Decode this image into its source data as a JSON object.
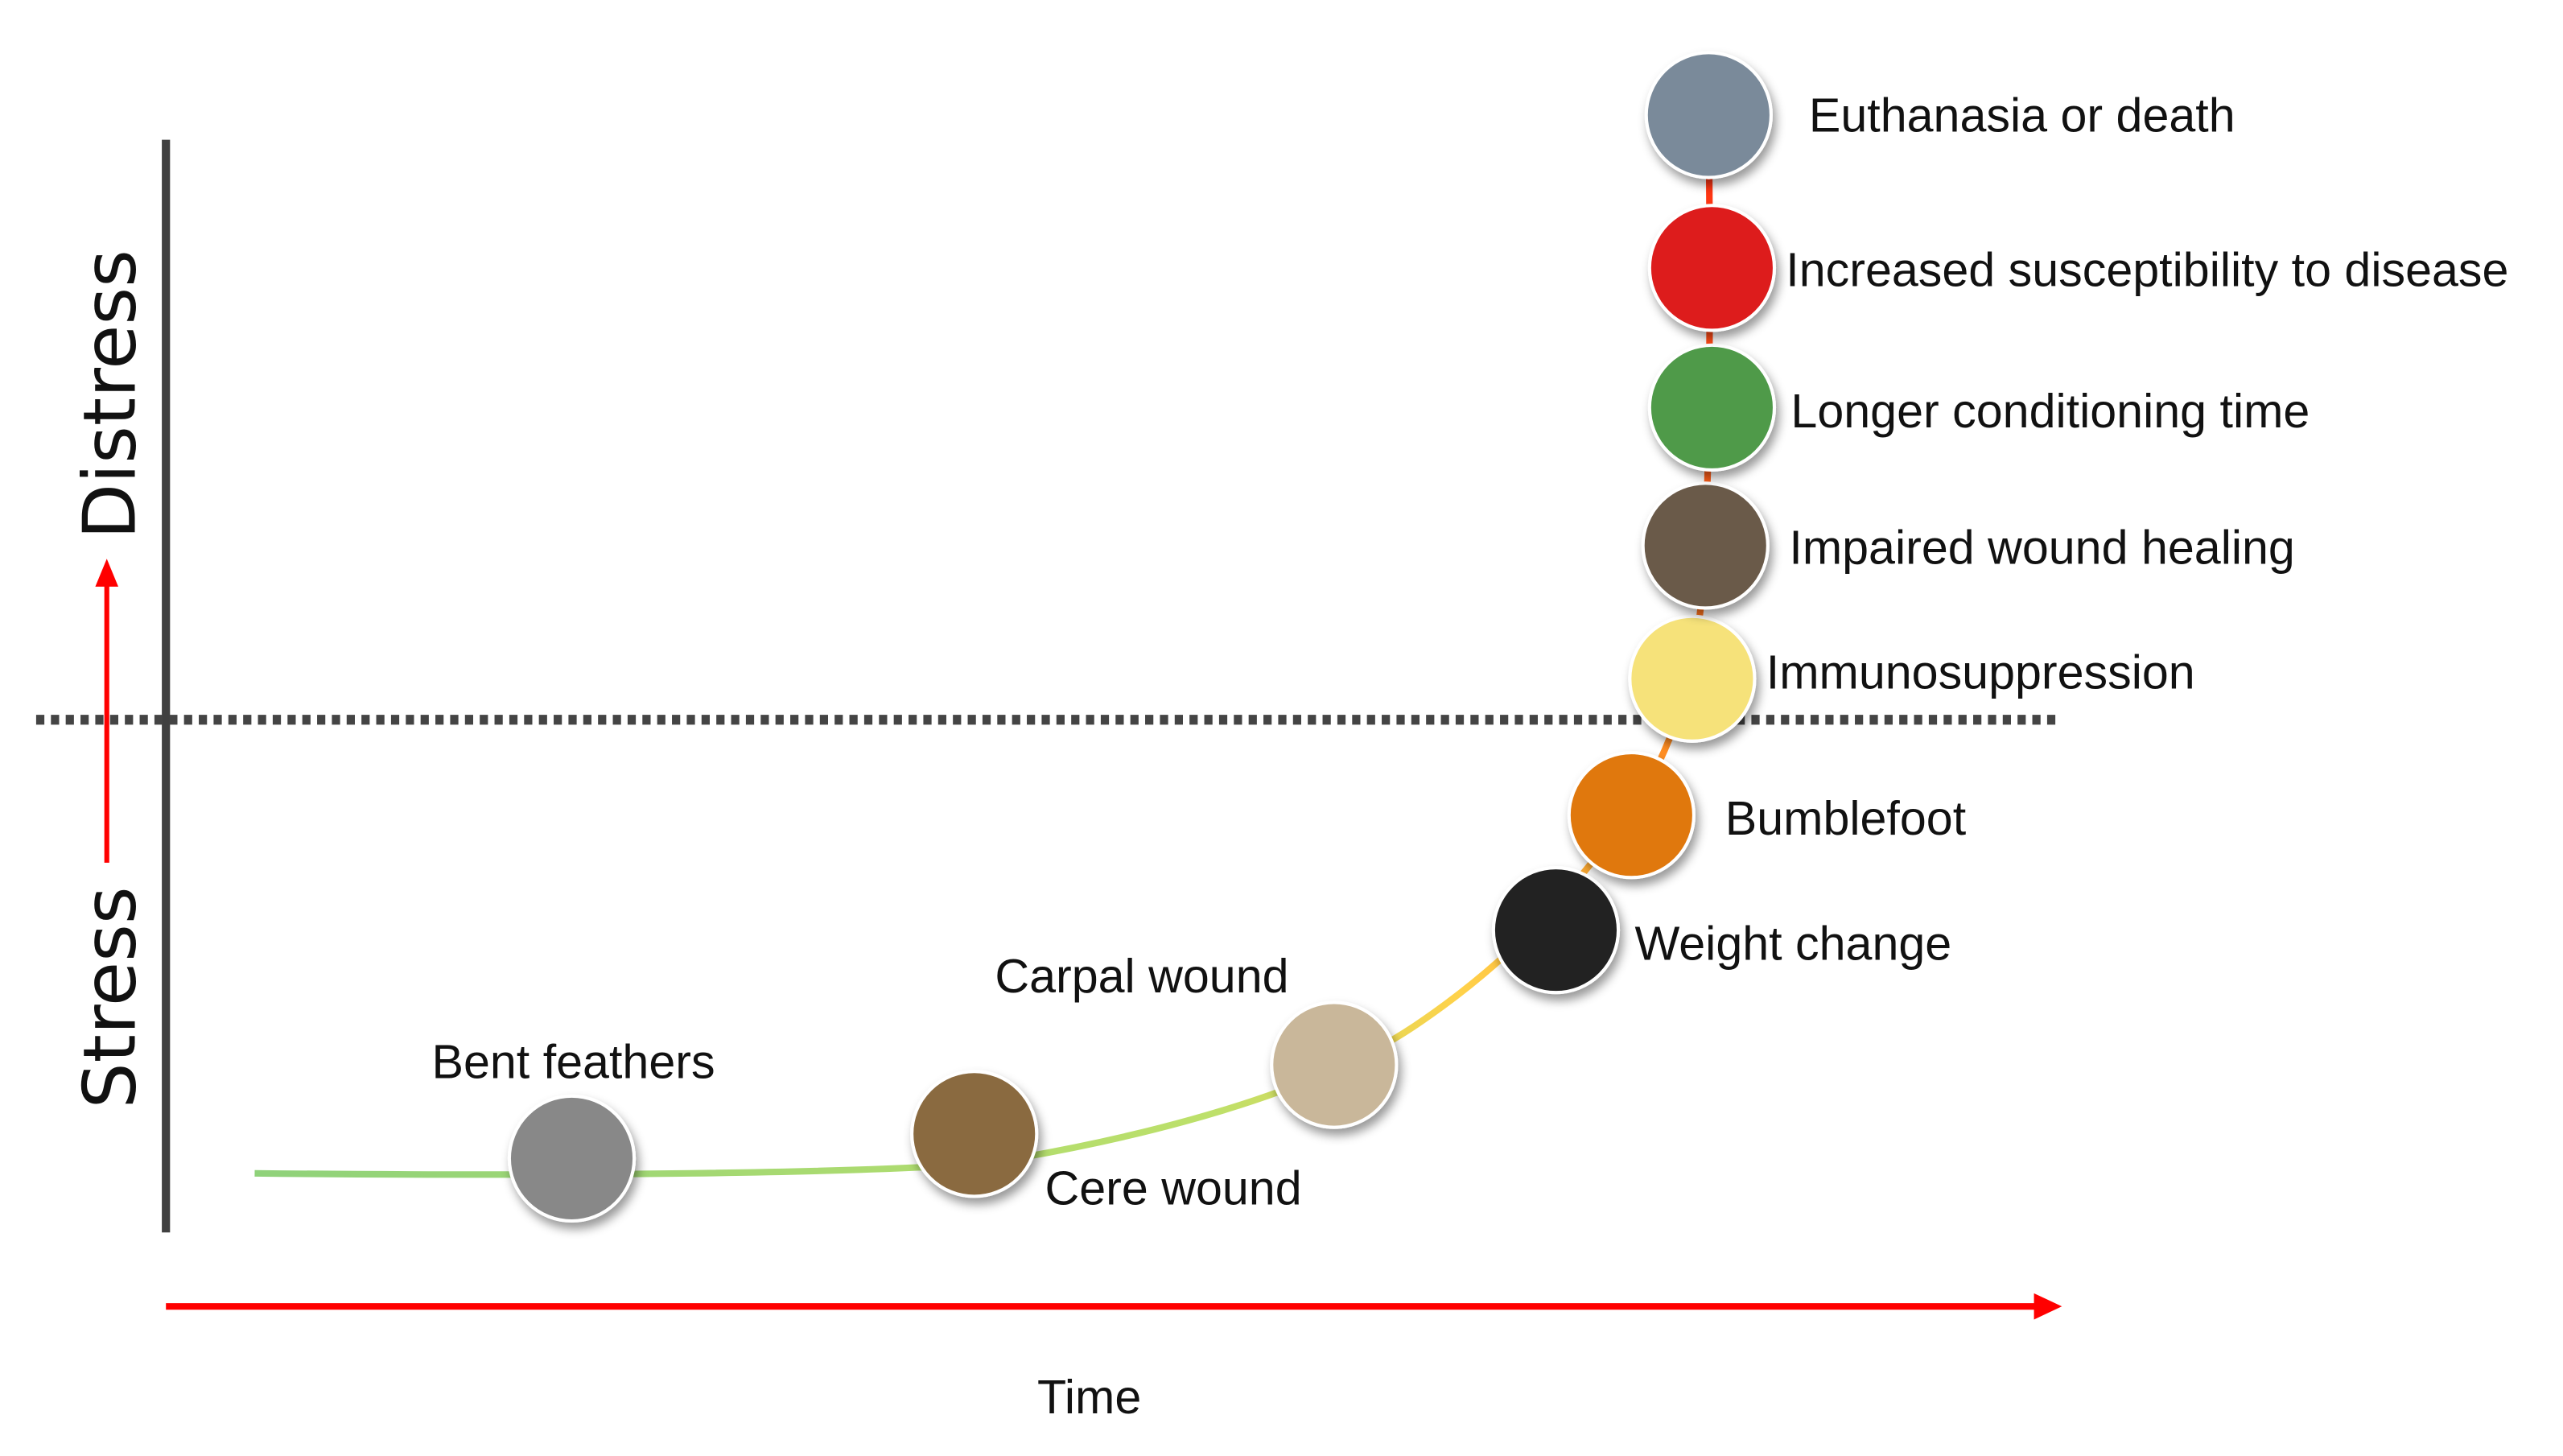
{
  "y_axis": {
    "low_label": "Stress",
    "high_label": "Distress"
  },
  "x_axis": {
    "label": "Time"
  },
  "threshold": "dotted line separating stress from distress",
  "events": [
    {
      "label": "Bent feathers",
      "color": "#888888"
    },
    {
      "label": "Cere wound",
      "color": "#8a6a40"
    },
    {
      "label": "Carpal wound",
      "color": "#c9b79a"
    },
    {
      "label": "Weight change",
      "color": "#222222"
    },
    {
      "label": "Bumblefoot",
      "color": "#e07810"
    },
    {
      "label": "Immunosuppression",
      "color": "#f6e27a"
    },
    {
      "label": "Impaired wound healing",
      "color": "#6b5a4a"
    },
    {
      "label": "Longer conditioning time",
      "color": "#4f9a4a"
    },
    {
      "label": "Increased susceptibility to disease",
      "color": "#dd1a1a"
    },
    {
      "label": "Euthanasia or death",
      "color": "#7a8a9a"
    }
  ],
  "colors": {
    "arrow": "#ff0000",
    "axis": "#404040"
  }
}
